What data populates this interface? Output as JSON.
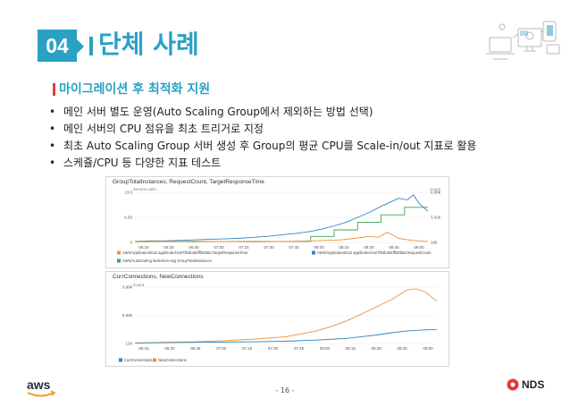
{
  "header": {
    "number": "04",
    "title": "단체 사례"
  },
  "subtitle": "마이그레이션 후 최적화 지원",
  "bullets": [
    "메인 서버 별도 운영(Auto Scaling Group에서 제외하는 방법 선택)",
    "메인 서버의 CPU 점유을 최초 트리거로 지정",
    "최초 Auto Scaling Group 서버 생성 후 Group의 평균 CPU를 Scale-in/out 지표로 활용",
    "스케쥴/CPU 등 다양한 지표 테스트"
  ],
  "chart_data": [
    {
      "type": "line",
      "title": "GroupTotalInstances, RequestCount, TargetResponseTime",
      "left_axis_label": "Service units",
      "right_axis_label": "Count",
      "x_ticks": [
        "06:15",
        "06:30",
        "06:45",
        "07:00",
        "07:15",
        "07:30",
        "07:45",
        "08:00",
        "08:15",
        "08:30",
        "08:45",
        "09:00"
      ],
      "y_left_ticks": [
        "13.0",
        "6.50",
        "0"
      ],
      "y_right_ticks": [
        "6.88k",
        "3.42k",
        "186"
      ],
      "legend": [
        {
          "name": "AWS/ApplicationELB app/lindechos/7f54b4d4fff30b6d TargetResponseTime",
          "color": "#f0913a"
        },
        {
          "name": "AWS/ApplicationELB app/lindechos/7f54b4d4fff30b6d RequestCount",
          "color": "#2e86c1"
        },
        {
          "name": "AWS/AutoScaling lindechon-asg GroupTotalInstances",
          "color": "#3fa34d"
        }
      ],
      "series": [
        {
          "name": "RequestCount",
          "color": "#2e86c1",
          "x": [
            0,
            0.05,
            0.1,
            0.15,
            0.2,
            0.25,
            0.3,
            0.35,
            0.4,
            0.45,
            0.5,
            0.55,
            0.6,
            0.64,
            0.68,
            0.72,
            0.76,
            0.8,
            0.84,
            0.87,
            0.9,
            0.93,
            0.95,
            0.97,
            1.0
          ],
          "y": [
            0.02,
            0.03,
            0.03,
            0.04,
            0.05,
            0.06,
            0.07,
            0.08,
            0.1,
            0.12,
            0.15,
            0.18,
            0.22,
            0.27,
            0.33,
            0.4,
            0.5,
            0.6,
            0.72,
            0.8,
            0.88,
            0.85,
            0.95,
            0.78,
            0.62
          ]
        },
        {
          "name": "GroupTotalInstances",
          "color": "#3fa34d",
          "x": [
            0,
            0.6,
            0.6,
            0.68,
            0.68,
            0.76,
            0.76,
            0.84,
            0.84,
            0.92,
            0.92,
            1.0
          ],
          "y": [
            0.02,
            0.02,
            0.12,
            0.12,
            0.25,
            0.25,
            0.4,
            0.4,
            0.55,
            0.55,
            0.7,
            0.7
          ]
        },
        {
          "name": "TargetResponseTime",
          "color": "#f0913a",
          "x": [
            0,
            0.1,
            0.2,
            0.3,
            0.4,
            0.5,
            0.6,
            0.7,
            0.75,
            0.8,
            0.83,
            0.86,
            0.88,
            0.9,
            0.92,
            0.95,
            1.0
          ],
          "y": [
            0.01,
            0.02,
            0.01,
            0.02,
            0.01,
            0.02,
            0.03,
            0.05,
            0.08,
            0.12,
            0.1,
            0.2,
            0.15,
            0.08,
            0.06,
            0.04,
            0.02
          ]
        }
      ]
    },
    {
      "type": "line",
      "title": "CurrConnections, NewConnections",
      "left_axis_label": "Count",
      "x_ticks": [
        "06:15",
        "06:30",
        "06:45",
        "07:00",
        "07:15",
        "07:30",
        "07:45",
        "08:00",
        "08:15",
        "08:30",
        "08:45",
        "09:00"
      ],
      "y_left_ticks": [
        "9.98k",
        "5.06k",
        "134"
      ],
      "legend": [
        {
          "name": "CurrConnections",
          "color": "#2e86c1"
        },
        {
          "name": "NewConnections",
          "color": "#f0913a"
        }
      ],
      "series": [
        {
          "name": "NewConnections",
          "color": "#f0913a",
          "x": [
            0,
            0.1,
            0.2,
            0.3,
            0.4,
            0.5,
            0.55,
            0.6,
            0.65,
            0.7,
            0.75,
            0.8,
            0.85,
            0.88,
            0.9,
            0.93,
            0.96,
            1.0
          ],
          "y": [
            0.01,
            0.02,
            0.03,
            0.05,
            0.08,
            0.12,
            0.17,
            0.22,
            0.3,
            0.4,
            0.52,
            0.65,
            0.78,
            0.88,
            0.95,
            0.97,
            0.92,
            0.75
          ]
        },
        {
          "name": "CurrConnections",
          "color": "#2e86c1",
          "x": [
            0,
            0.2,
            0.4,
            0.5,
            0.6,
            0.7,
            0.75,
            0.8,
            0.85,
            0.9,
            0.95,
            1.0
          ],
          "y": [
            0.01,
            0.02,
            0.03,
            0.04,
            0.06,
            0.09,
            0.12,
            0.15,
            0.19,
            0.22,
            0.24,
            0.25
          ]
        }
      ]
    }
  ],
  "footer": {
    "page": "- 16 -",
    "aws_logo_text": "aws",
    "partner_logo_text": "NDS"
  }
}
